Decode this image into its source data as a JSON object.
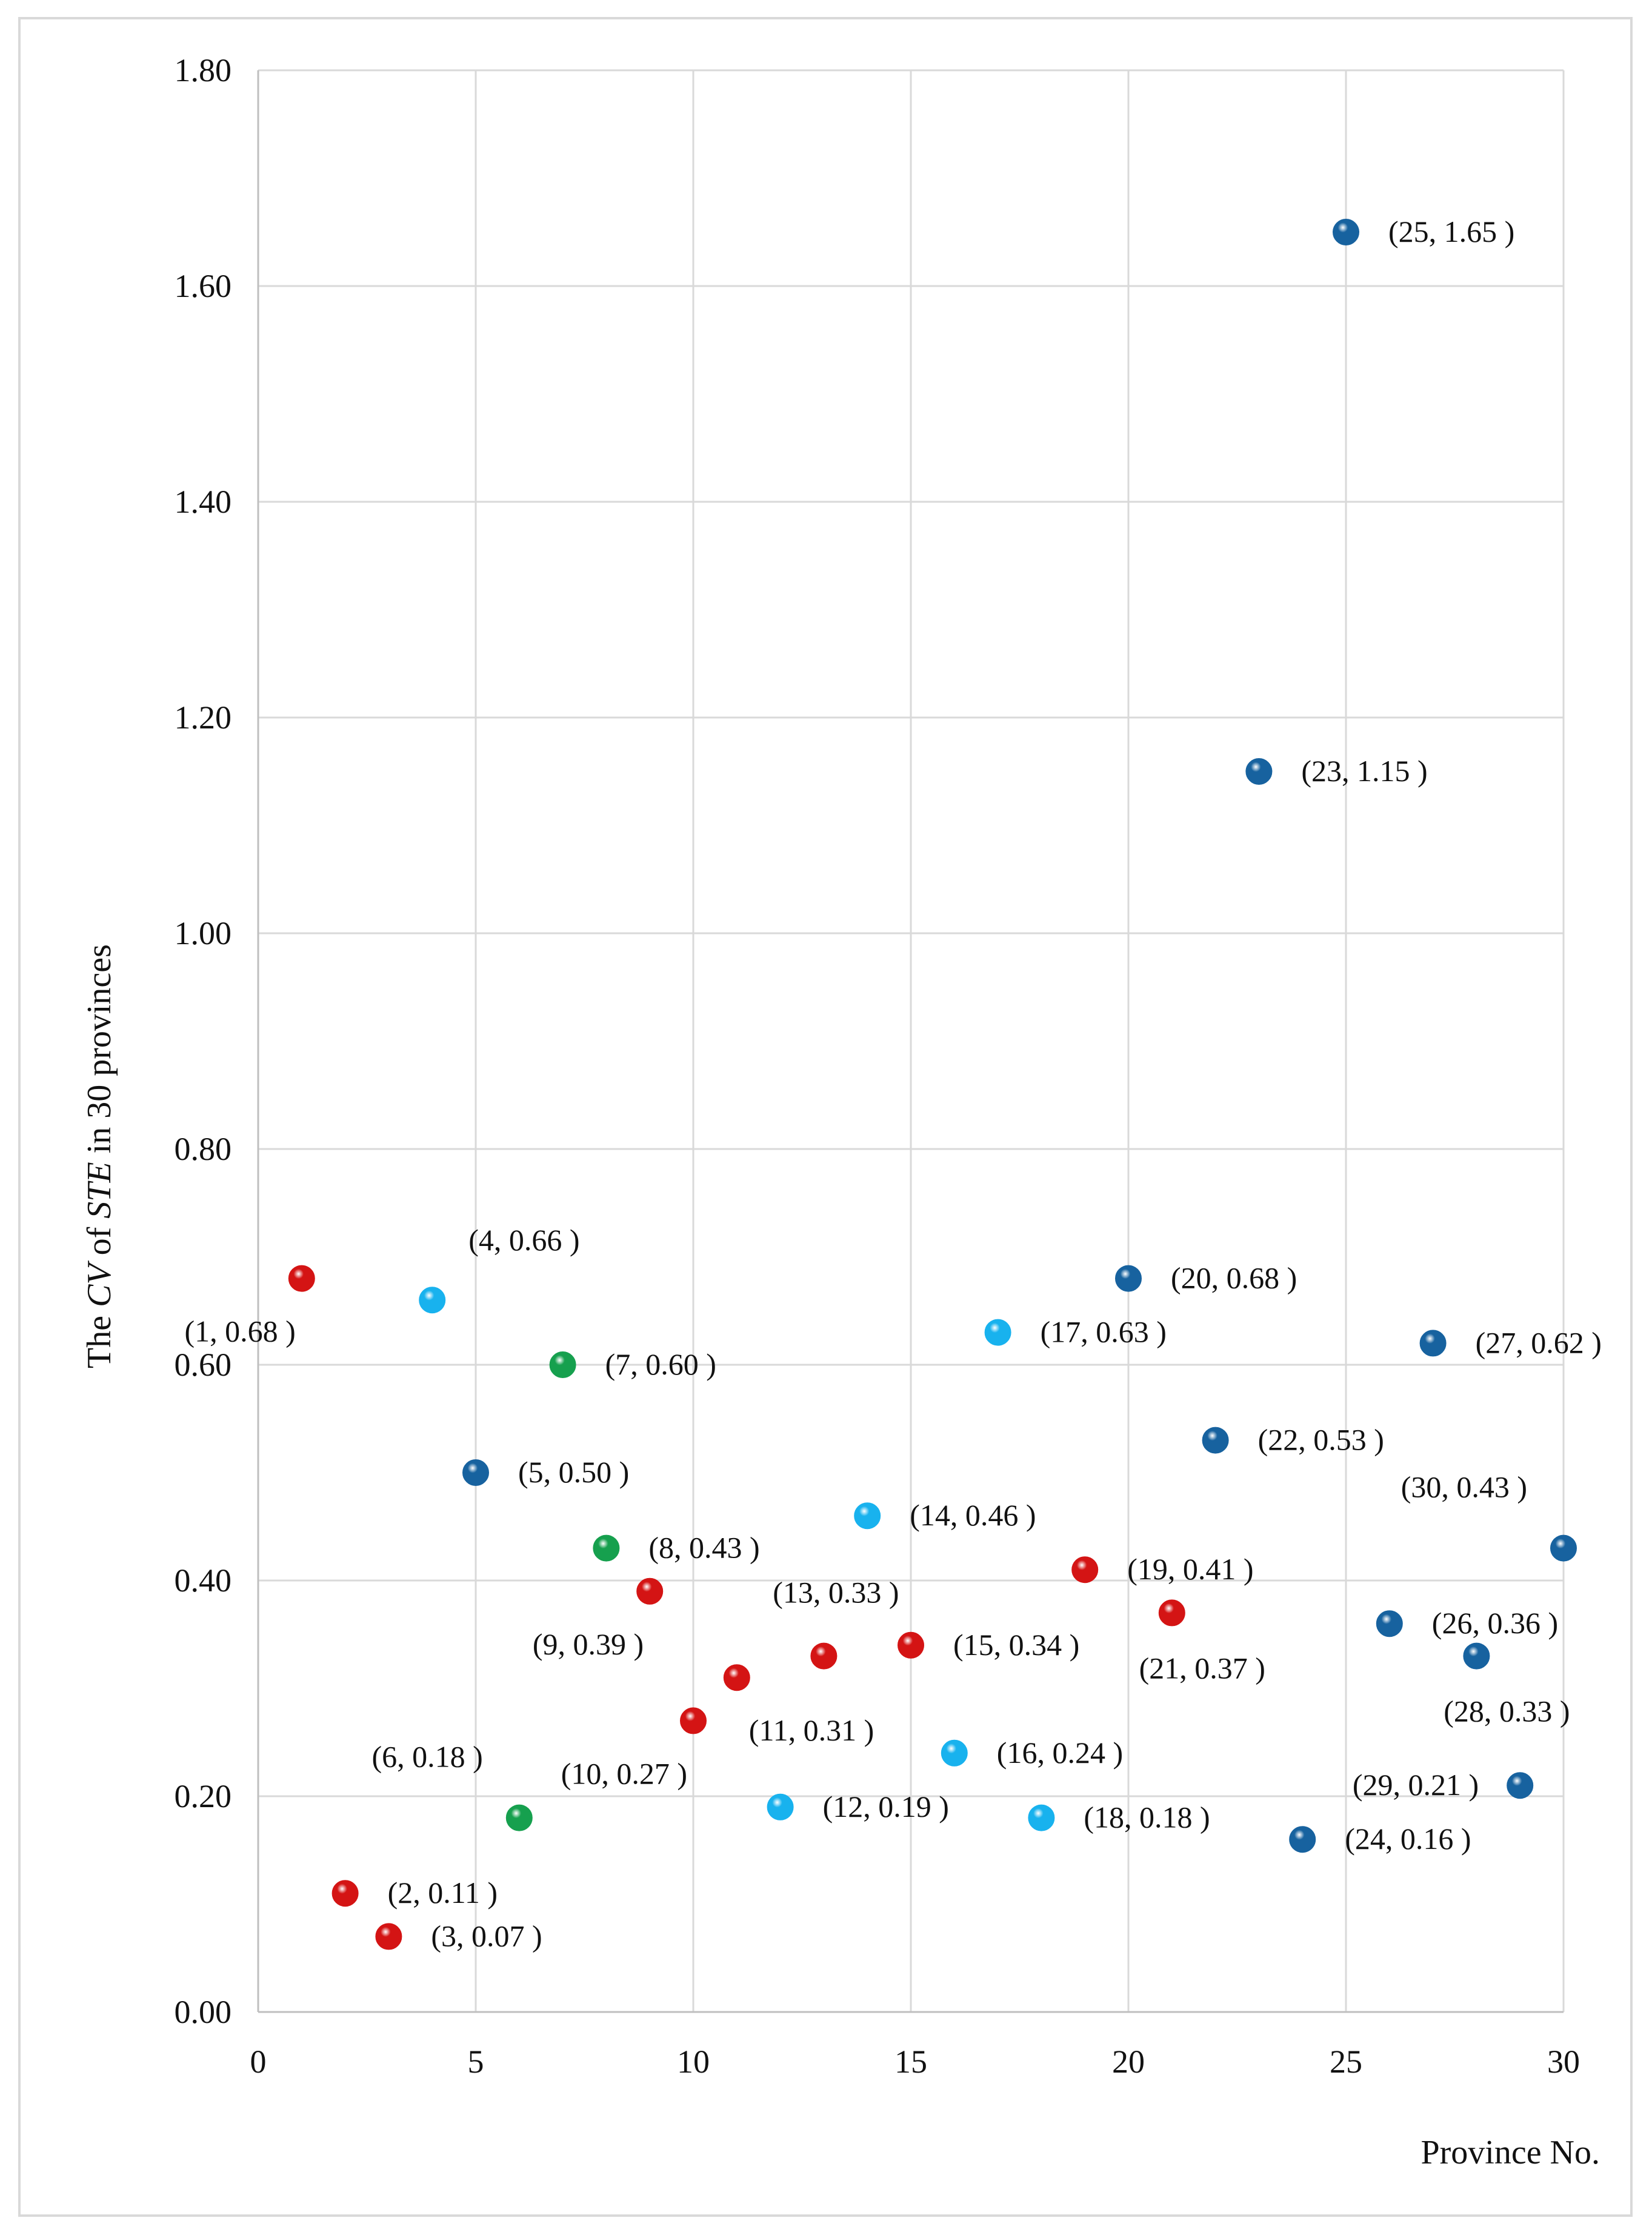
{
  "chart_data": {
    "type": "scatter",
    "title": "",
    "xlabel": "Province No.",
    "ylabel_parts": [
      "The ",
      "CV",
      " of ",
      "STE",
      " in 30 provinces"
    ],
    "xlim": [
      0,
      30
    ],
    "ylim": [
      0,
      1.8
    ],
    "x_ticks": [
      "0",
      "5",
      "10",
      "15",
      "20",
      "25",
      "30"
    ],
    "y_ticks": [
      "0.00",
      "0.20",
      "0.40",
      "0.60",
      "0.80",
      "1.00",
      "1.20",
      "1.40",
      "1.60",
      "1.80"
    ],
    "grid": true,
    "colors": {
      "red": "#d41414",
      "light_blue": "#18b2ee",
      "dark_blue": "#17629f",
      "green": "#16a04e"
    },
    "points": [
      {
        "x": 1,
        "y": 0.68,
        "label": "(1, 0.68 )",
        "color": "red",
        "label_pos": "below-left"
      },
      {
        "x": 2,
        "y": 0.11,
        "label": "(2, 0.11 )",
        "color": "red",
        "label_pos": "right"
      },
      {
        "x": 3,
        "y": 0.07,
        "label": "(3, 0.07 )",
        "color": "red",
        "label_pos": "right"
      },
      {
        "x": 4,
        "y": 0.66,
        "label": "(4, 0.66 )",
        "color": "light_blue",
        "label_pos": "above-right"
      },
      {
        "x": 5,
        "y": 0.5,
        "label": "(5, 0.50 )",
        "color": "dark_blue",
        "label_pos": "right"
      },
      {
        "x": 6,
        "y": 0.18,
        "label": "(6, 0.18 )",
        "color": "green",
        "label_pos": "above-left"
      },
      {
        "x": 7,
        "y": 0.6,
        "label": "(7, 0.60 )",
        "color": "green",
        "label_pos": "right"
      },
      {
        "x": 8,
        "y": 0.43,
        "label": "(8, 0.43 )",
        "color": "green",
        "label_pos": "right"
      },
      {
        "x": 9,
        "y": 0.39,
        "label": "(9, 0.39 )",
        "color": "red",
        "label_pos": "below-left"
      },
      {
        "x": 10,
        "y": 0.27,
        "label": "(10, 0.27 )",
        "color": "red",
        "label_pos": "below-left"
      },
      {
        "x": 11,
        "y": 0.31,
        "label": "(11, 0.31 )",
        "color": "red",
        "label_pos": "below-right"
      },
      {
        "x": 12,
        "y": 0.19,
        "label": "(12, 0.19 )",
        "color": "light_blue",
        "label_pos": "right"
      },
      {
        "x": 13,
        "y": 0.33,
        "label": "(13, 0.33 )",
        "color": "red",
        "label_pos": "above"
      },
      {
        "x": 14,
        "y": 0.46,
        "label": "(14, 0.46 )",
        "color": "light_blue",
        "label_pos": "right"
      },
      {
        "x": 15,
        "y": 0.34,
        "label": "(15, 0.34 )",
        "color": "red",
        "label_pos": "right"
      },
      {
        "x": 16,
        "y": 0.24,
        "label": "(16, 0.24 )",
        "color": "light_blue",
        "label_pos": "right"
      },
      {
        "x": 17,
        "y": 0.63,
        "label": "(17, 0.63 )",
        "color": "light_blue",
        "label_pos": "right"
      },
      {
        "x": 18,
        "y": 0.18,
        "label": "(18, 0.18 )",
        "color": "light_blue",
        "label_pos": "right"
      },
      {
        "x": 19,
        "y": 0.41,
        "label": "(19, 0.41 )",
        "color": "red",
        "label_pos": "right"
      },
      {
        "x": 20,
        "y": 0.68,
        "label": "(20, 0.68 )",
        "color": "dark_blue",
        "label_pos": "right"
      },
      {
        "x": 21,
        "y": 0.37,
        "label": "(21, 0.37 )",
        "color": "red",
        "label_pos": "below"
      },
      {
        "x": 22,
        "y": 0.53,
        "label": "(22, 0.53 )",
        "color": "dark_blue",
        "label_pos": "right"
      },
      {
        "x": 23,
        "y": 1.15,
        "label": "(23, 1.15 )",
        "color": "dark_blue",
        "label_pos": "right"
      },
      {
        "x": 24,
        "y": 0.16,
        "label": "(24, 0.16 )",
        "color": "dark_blue",
        "label_pos": "right"
      },
      {
        "x": 25,
        "y": 1.65,
        "label": "(25, 1.65 )",
        "color": "dark_blue",
        "label_pos": "right"
      },
      {
        "x": 26,
        "y": 0.36,
        "label": "(26, 0.36 )",
        "color": "dark_blue",
        "label_pos": "right"
      },
      {
        "x": 27,
        "y": 0.62,
        "label": "(27, 0.62 )",
        "color": "dark_blue",
        "label_pos": "right"
      },
      {
        "x": 28,
        "y": 0.33,
        "label": "(28, 0.33 )",
        "color": "dark_blue",
        "label_pos": "below"
      },
      {
        "x": 29,
        "y": 0.21,
        "label": "(29, 0.21 )",
        "color": "dark_blue",
        "label_pos": "left"
      },
      {
        "x": 30,
        "y": 0.43,
        "label": "(30, 0.43 )",
        "color": "dark_blue",
        "label_pos": "above-left"
      }
    ]
  }
}
